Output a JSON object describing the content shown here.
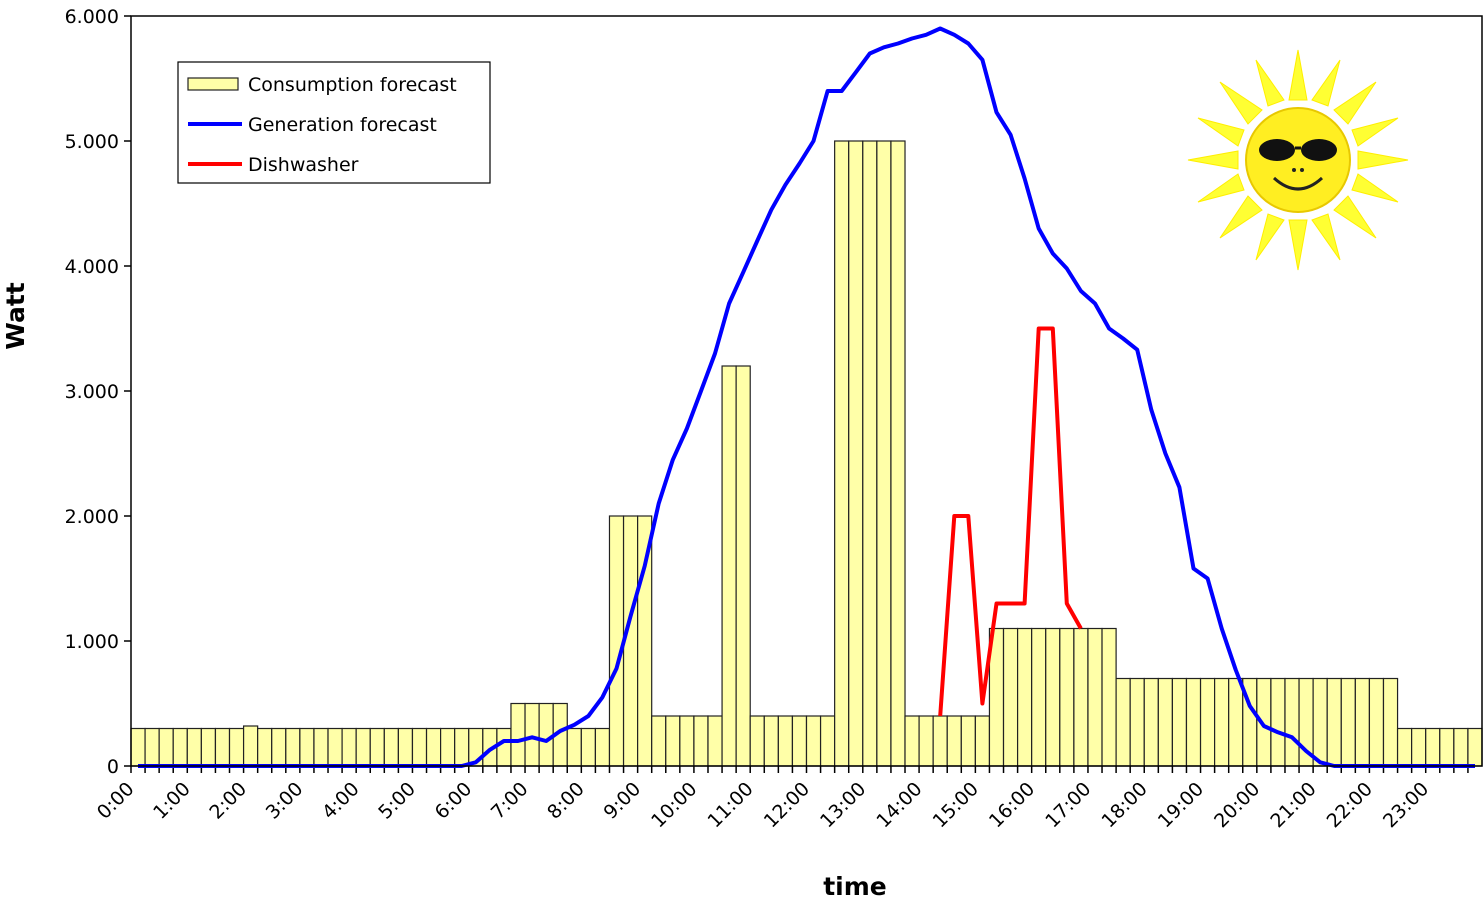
{
  "chart_data": {
    "type": "bar",
    "xlabel": "time",
    "ylabel": "Watt",
    "legend": "upper left",
    "grid": false,
    "ylim": [
      0,
      6000
    ],
    "yticks": [
      0,
      {
        "value": 1000,
        "label": "1.000"
      },
      {
        "value": 2000,
        "label": "2.000"
      },
      {
        "value": 3000,
        "label": "3.000"
      },
      {
        "value": 4000,
        "label": "4.000"
      },
      {
        "value": 5000,
        "label": "5.000"
      },
      {
        "value": 6000,
        "label": "6.000"
      }
    ],
    "categories": [
      "0:00",
      null,
      null,
      null,
      "1:00",
      null,
      null,
      null,
      "2:00",
      null,
      null,
      null,
      "3:00",
      null,
      null,
      null,
      "4:00",
      null,
      null,
      null,
      "5:00",
      null,
      null,
      null,
      "6:00",
      null,
      null,
      null,
      "7:00",
      null,
      null,
      null,
      "8:00",
      null,
      null,
      null,
      "9:00",
      null,
      null,
      null,
      "10:00",
      null,
      null,
      null,
      "11:00",
      null,
      null,
      null,
      "12:00",
      null,
      null,
      null,
      "13:00",
      null,
      null,
      null,
      "14:00",
      null,
      null,
      null,
      "15:00",
      null,
      null,
      null,
      "16:00",
      null,
      null,
      null,
      "17:00",
      null,
      null,
      null,
      "18:00",
      null,
      null,
      null,
      "19:00",
      null,
      null,
      null,
      "20:00",
      null,
      null,
      null,
      "21:00",
      null,
      null,
      null,
      "22:00",
      null,
      null,
      null,
      "23:00",
      null,
      null,
      null
    ],
    "series": [
      {
        "name": "Consumption forecast",
        "type": "bar",
        "color": "#ffffa8",
        "values": [
          300,
          300,
          300,
          300,
          300,
          300,
          300,
          300,
          320,
          300,
          300,
          300,
          300,
          300,
          300,
          300,
          300,
          300,
          300,
          300,
          300,
          300,
          300,
          300,
          300,
          300,
          300,
          500,
          500,
          500,
          500,
          300,
          300,
          300,
          2000,
          2000,
          2000,
          400,
          400,
          400,
          400,
          400,
          3200,
          3200,
          400,
          400,
          400,
          400,
          400,
          400,
          5000,
          5000,
          5000,
          5000,
          5000,
          400,
          400,
          400,
          400,
          400,
          400,
          1100,
          1100,
          1100,
          1100,
          1100,
          1100,
          1100,
          1100,
          1100,
          700,
          700,
          700,
          700,
          700,
          700,
          700,
          700,
          700,
          700,
          700,
          700,
          700,
          700,
          700,
          700,
          700,
          700,
          700,
          700,
          300,
          300,
          300,
          300,
          300,
          300
        ]
      },
      {
        "name": "Generation forecast",
        "type": "line",
        "color": "#0000ff",
        "values": [
          0,
          0,
          0,
          0,
          0,
          0,
          0,
          0,
          0,
          0,
          0,
          0,
          0,
          0,
          0,
          0,
          0,
          0,
          0,
          0,
          0,
          0,
          0,
          0,
          30,
          130,
          200,
          200,
          230,
          200,
          280,
          330,
          400,
          550,
          780,
          1200,
          1600,
          2100,
          2450,
          2700,
          3000,
          3300,
          3700,
          3950,
          4200,
          4450,
          4650,
          4820,
          5000,
          5400,
          5400,
          5550,
          5700,
          5750,
          5780,
          5820,
          5850,
          5900,
          5850,
          5780,
          5650,
          5230,
          5050,
          4700,
          4300,
          4100,
          3980,
          3800,
          3700,
          3500,
          3420,
          3330,
          2850,
          2500,
          2230,
          1580,
          1500,
          1100,
          770,
          480,
          320,
          270,
          230,
          120,
          30,
          0,
          0,
          0,
          0,
          0,
          0,
          0,
          0,
          0,
          0,
          0
        ]
      },
      {
        "name": "Dishwasher",
        "type": "line",
        "color": "#ff0000",
        "values": [
          null,
          null,
          null,
          null,
          null,
          null,
          null,
          null,
          null,
          null,
          null,
          null,
          null,
          null,
          null,
          null,
          null,
          null,
          null,
          null,
          null,
          null,
          null,
          null,
          null,
          null,
          null,
          null,
          null,
          null,
          null,
          null,
          null,
          null,
          null,
          null,
          null,
          null,
          null,
          null,
          null,
          null,
          null,
          null,
          null,
          null,
          null,
          null,
          null,
          null,
          null,
          null,
          null,
          null,
          null,
          null,
          null,
          400,
          2000,
          2000,
          500,
          1300,
          1300,
          1300,
          3500,
          3500,
          1300,
          1100,
          null,
          null,
          null,
          null,
          null,
          null,
          null,
          null,
          null,
          null,
          null,
          null,
          null,
          null,
          null,
          null,
          null,
          null,
          null,
          null,
          null,
          null,
          null,
          null,
          null,
          null,
          null,
          null
        ]
      }
    ]
  }
}
